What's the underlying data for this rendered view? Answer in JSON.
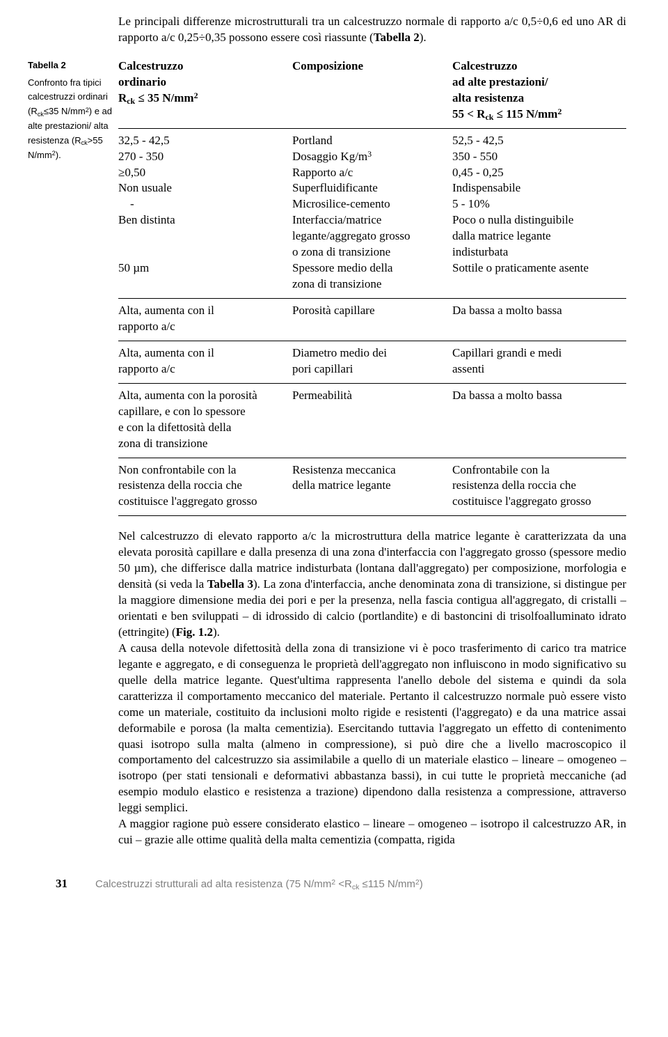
{
  "intro_html": "Le principali differenze microstrutturali tra un calcestruzzo normale di rapporto a/c 0,5÷0,6 ed uno AR di rapporto a/c 0,25÷0,35 possono essere così riassunte (<b>Tabella 2</b>).",
  "side_caption": {
    "name": "Tabella 2",
    "text_html": "Confronto fra tipici calcestruzzi ordinari (R<sub>ck</sub>≤35 N/mm<sup>2</sup>) e ad alte prestazioni/ alta resistenza (R<sub>ck</sub>>55 N/mm<sup>2</sup>)."
  },
  "table": {
    "header": {
      "c1_html": "<b>Calcestruzzo<br>ordinario<br>R<sub>ck</sub> ≤ 35 N/mm<sup>2</sup></b>",
      "c2_html": "<b>Composizione</b>",
      "c3_html": "<b>Calcestruzzo<br>ad alte prestazioni/<br>alta resistenza<br>55 &lt; R<sub>ck</sub> ≤ 115 N/mm<sup>2</sup></b>"
    },
    "sections": [
      {
        "c1_html": "32,5 - 42,5<br>270 - 350<br>≥0,50<br>Non usuale<br>&nbsp;&nbsp;&nbsp;&nbsp;-<br>Ben distinta<br><br><br>50 µm",
        "c2_html": "Portland<br>Dosaggio Kg/m<sup>3</sup><br>Rapporto a/c<br>Superfluidificante<br>Microsilice-cemento<br>Interfaccia/matrice<br>legante/aggregato grosso<br>o zona di transizione<br>Spessore medio della<br>zona di transizione",
        "c3_html": "52,5 - 42,5<br>350 - 550<br>0,45 - 0,25<br>Indispensabile<br>5 - 10%<br>Poco o nulla distinguibile<br>dalla matrice legante<br>indisturbata<br>Sottile o praticamente asente"
      },
      {
        "c1_html": "Alta, aumenta con il<br>rapporto a/c",
        "c2_html": "Porosità capillare",
        "c3_html": "Da bassa a molto bassa"
      },
      {
        "c1_html": "Alta, aumenta con il<br>rapporto a/c",
        "c2_html": "Diametro medio dei<br>pori capillari",
        "c3_html": "Capillari grandi e medi<br>assenti"
      },
      {
        "c1_html": "Alta, aumenta con la porosità<br>capillare, e con lo spessore<br>e con la difettosità della<br>zona di transizione",
        "c2_html": "Permeabilità",
        "c3_html": "Da bassa a molto bassa"
      },
      {
        "c1_html": "Non confrontabile con la<br>resistenza della roccia che<br>costituisce l'aggregato grosso",
        "c2_html": "Resistenza meccanica<br>della matrice legante",
        "c3_html": "Confrontabile con la<br>resistenza della roccia che<br>costituisce l'aggregato grosso"
      }
    ]
  },
  "body_html": "Nel calcestruzzo di elevato rapporto a/c la microstruttura della matrice legante è caratterizzata da una elevata porosità capillare e dalla presenza di una zona d'interfaccia con l'aggregato grosso (spessore medio 50 µm), che differisce dalla matrice indisturbata (lontana dall'aggregato) per composizione, morfologia e densità (si veda la <b>Tabella 3</b>). La zona d'interfaccia, anche denominata zona di transizione, si distingue per la maggiore dimensione media dei pori e per la presenza, nella fascia contigua all'aggregato, di cristalli – orientati e ben sviluppati – di idrossido di calcio (portlandite) e di bastoncini di trisolfoalluminato idrato (ettringite) (<b>Fig. 1.2</b>).<br>A causa della notevole difettosità della zona di transizione vi è poco trasferimento di carico tra matrice legante e aggregato, e di conseguenza le proprietà dell'aggregato non influiscono in modo significativo su quelle della matrice legante. Quest'ultima rappresenta l'anello debole del sistema e quindi da sola caratterizza il comportamento meccanico del materiale. Pertanto il calcestruzzo normale può essere visto come un materiale, costituito da inclusioni molto rigide e resistenti (l'aggregato) e da una matrice assai deformabile e porosa (la malta cementizia). Esercitando tuttavia l'aggregato un effetto di contenimento quasi isotropo sulla malta (almeno in compressione), si può dire che a livello macroscopico il comportamento del calcestruzzo sia assimilabile a quello di un materiale elastico – lineare – omogeneo – isotropo (per stati tensionali e deformativi abbastanza bassi), in cui tutte le proprietà meccaniche (ad esempio modulo elastico e resistenza a trazione) dipendono dalla resistenza a compressione, attraverso leggi semplici.<br>A maggior ragione può essere considerato elastico – lineare – omogeneo – isotropo il calcestruzzo AR, in cui – grazie alle ottime qualità della malta cementizia (compatta, rigida",
  "footer": {
    "page": "31",
    "running_html": "Calcestruzzi strutturali ad alta resistenza (75 N/mm<sup>2</sup> &lt;R<sub>ck</sub> ≤115 N/mm<sup>2</sup>)"
  }
}
